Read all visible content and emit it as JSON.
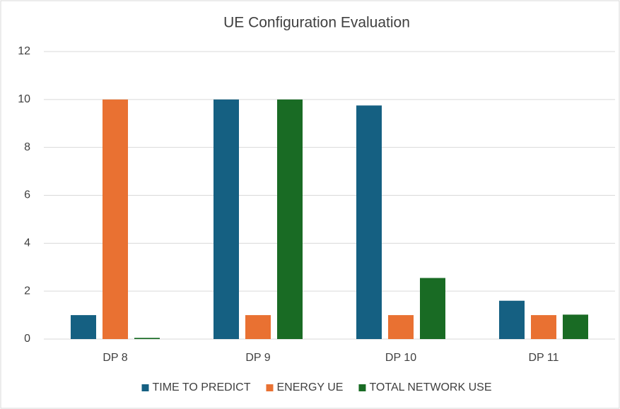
{
  "chart_data": {
    "type": "bar",
    "title": "UE Configuration Evaluation",
    "categories": [
      "DP 8",
      "DP 9",
      "DP 10",
      "DP 11"
    ],
    "series": [
      {
        "name": "TIME TO PREDICT",
        "color": "#156082",
        "values": [
          1,
          10,
          9.75,
          1.6
        ]
      },
      {
        "name": "ENERGY UE",
        "color": "#e97132",
        "values": [
          10,
          1,
          1,
          1
        ]
      },
      {
        "name": "TOTAL NETWORK USE",
        "color": "#196b24",
        "values": [
          0.05,
          10,
          2.55,
          1.02
        ]
      }
    ],
    "ylim": [
      0,
      12
    ],
    "yticks": [
      0,
      2,
      4,
      6,
      8,
      10,
      12
    ],
    "grid": true,
    "legend": "bottom"
  }
}
